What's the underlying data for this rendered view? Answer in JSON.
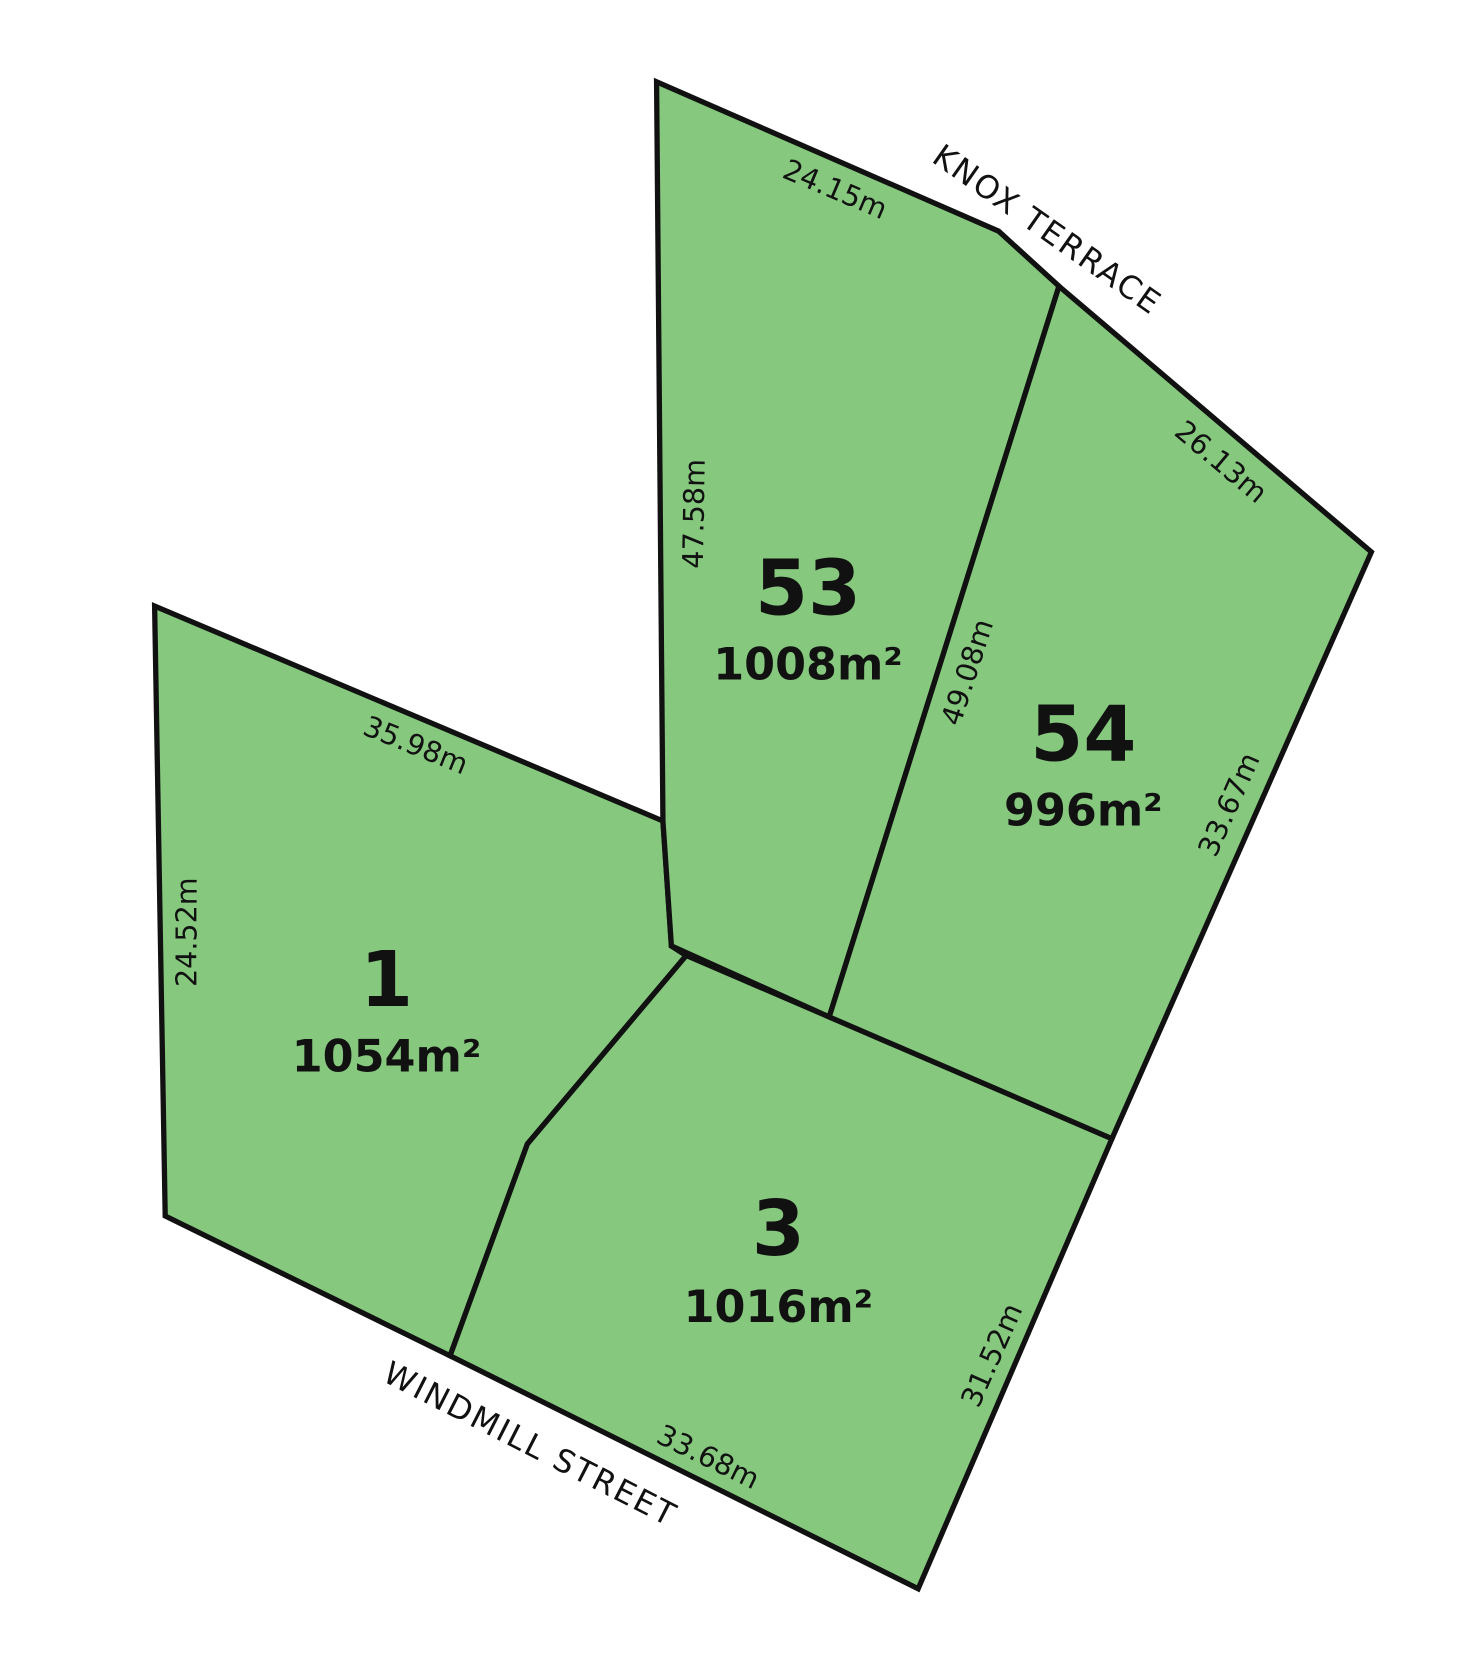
{
  "colors": {
    "lot_fill": "#86c87e",
    "boundary": "#111111"
  },
  "streets": {
    "north": "KNOX  TERRACE",
    "south": "WINDMILL STREET"
  },
  "lots": [
    {
      "number": "53",
      "area": "1008m²"
    },
    {
      "number": "54",
      "area": "996m²"
    },
    {
      "number": "1",
      "area": "1054m²"
    },
    {
      "number": "3",
      "area": "1016m²"
    }
  ],
  "dimensions": {
    "lot53_north": "24.15m",
    "lot53_west": "47.58m",
    "lot53_54_shared": "49.08m",
    "lot54_north": "26.13m",
    "lot54_east": "33.67m",
    "lot1_north": "35.98m",
    "lot1_west": "24.52m",
    "lot3_east": "31.52m",
    "lot3_south": "33.68m"
  }
}
